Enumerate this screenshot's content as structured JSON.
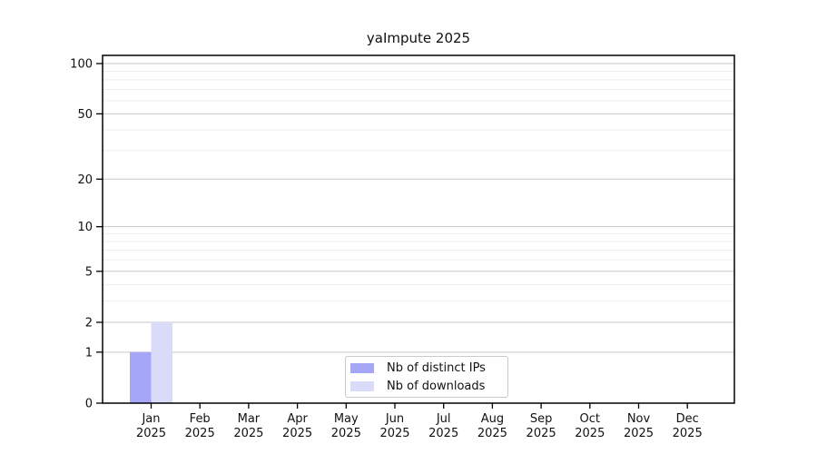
{
  "chart_data": {
    "type": "bar",
    "title": "yaImpute 2025",
    "xlabel": "",
    "ylabel": "",
    "year": "2025",
    "months": [
      "Jan",
      "Feb",
      "Mar",
      "Apr",
      "May",
      "Jun",
      "Jul",
      "Aug",
      "Sep",
      "Oct",
      "Nov",
      "Dec"
    ],
    "series": [
      {
        "name": "Nb of distinct IPs",
        "color": "#a6a6f6",
        "values": [
          1,
          0,
          0,
          0,
          0,
          0,
          0,
          0,
          0,
          0,
          0,
          0
        ]
      },
      {
        "name": "Nb of downloads",
        "color": "#dadaf9",
        "values": [
          2,
          0,
          0,
          0,
          0,
          0,
          0,
          0,
          0,
          0,
          0,
          0
        ]
      }
    ],
    "yscale": "log1p",
    "yticks": [
      0,
      1,
      2,
      5,
      10,
      20,
      50,
      100
    ],
    "y_minor_gridlines": [
      3,
      4,
      6,
      7,
      8,
      9,
      30,
      40,
      60,
      70,
      80,
      90
    ],
    "ylim": [
      0,
      115
    ],
    "grid": "horizontal",
    "legend_position": "inside-bottom-center",
    "colors": {
      "background": "#ffffff",
      "axis": "#000000",
      "grid_major": "#c6c6c6",
      "grid_minor": "#ededed",
      "bar_distinct_ips": "#a6a6f6",
      "bar_downloads": "#dadaf9"
    }
  }
}
